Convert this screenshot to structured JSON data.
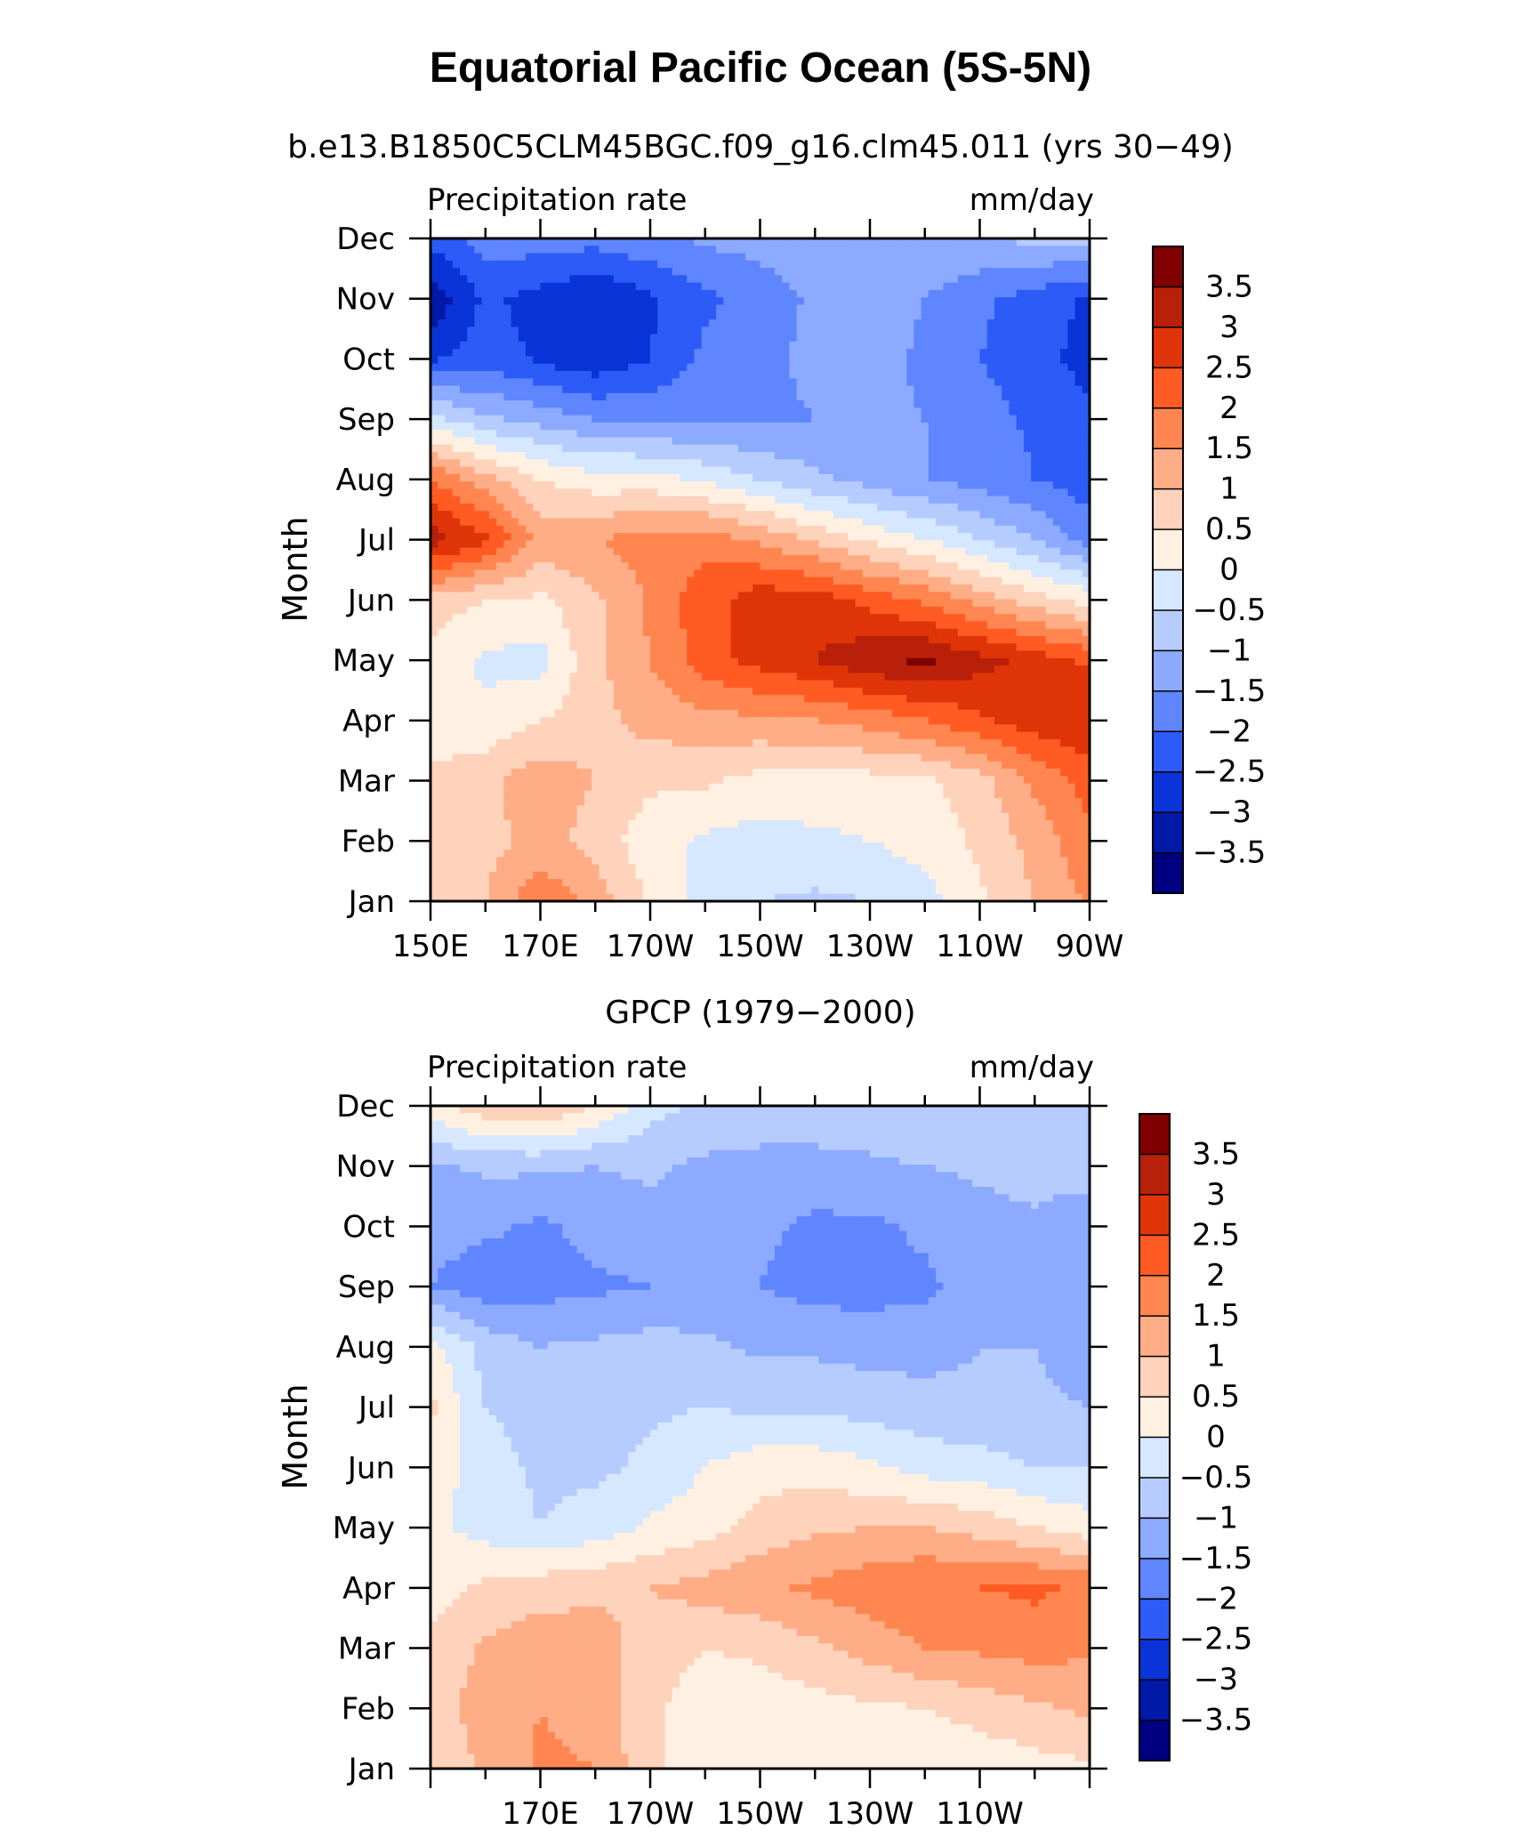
{
  "figure": {
    "title": "Equatorial Pacific Ocean (5S-5N)"
  },
  "colorbar": {
    "labels": [
      "3.5",
      "3",
      "2.5",
      "2",
      "1.5",
      "1",
      "0.5",
      "0",
      "−0.5",
      "−1",
      "−1.5",
      "−2",
      "−2.5",
      "−3",
      "−3.5"
    ],
    "colors": [
      "#800000",
      "#b8200a",
      "#e03508",
      "#ff5b22",
      "#ff8650",
      "#ffad86",
      "#ffd2bb",
      "#fff0e2",
      "#d6e8ff",
      "#b6ccff",
      "#8caaff",
      "#5f86ff",
      "#2c5bf7",
      "#0a34d8",
      "#0019a6",
      "#000080"
    ]
  },
  "chart_data": [
    {
      "type": "heatmap",
      "subtitle": "b.e13.B1850C5CLM45BGC.f09_g16.clm45.011 (yrs 30−49)",
      "left_label": "Precipitation rate",
      "right_label": "mm/day",
      "ylabel": "Month",
      "xticklabels": [
        "150E",
        "170E",
        "170W",
        "150W",
        "130W",
        "110W",
        "90W"
      ],
      "yticklabels": [
        "Jan",
        "Feb",
        "Mar",
        "Apr",
        "May",
        "Jun",
        "Jul",
        "Aug",
        "Sep",
        "Oct",
        "Nov",
        "Dec"
      ],
      "x_lon": [
        150,
        160,
        170,
        180,
        190,
        200,
        210,
        220,
        230,
        240,
        250,
        260,
        270
      ],
      "levels": [
        -3.5,
        -3,
        -2.5,
        -2,
        -1.5,
        -1,
        -0.5,
        0,
        0.5,
        1,
        1.5,
        2,
        2.5,
        3,
        3.5
      ],
      "values": [
        [
          0.6,
          1.0,
          1.9,
          1.3,
          0.4,
          -0.2,
          -0.5,
          -0.6,
          -0.5,
          -0.2,
          0.4,
          1.0,
          1.6
        ],
        [
          0.5,
          0.8,
          1.2,
          0.8,
          0.2,
          -0.1,
          -0.2,
          -0.1,
          0.0,
          0.2,
          0.6,
          1.2,
          1.9
        ],
        [
          0.6,
          0.9,
          1.3,
          1.0,
          0.6,
          0.6,
          0.3,
          0.3,
          0.3,
          0.4,
          0.8,
          1.6,
          2.2
        ],
        [
          0.2,
          0.1,
          0.5,
          0.8,
          1.2,
          1.3,
          1.4,
          1.5,
          1.7,
          2.0,
          2.4,
          2.8,
          3.0
        ],
        [
          0.3,
          -0.1,
          -0.2,
          0.9,
          1.5,
          2.3,
          2.7,
          3.0,
          3.4,
          3.6,
          3.2,
          2.8,
          2.4
        ],
        [
          0.8,
          0.5,
          0.4,
          0.9,
          1.6,
          2.3,
          2.8,
          2.8,
          2.3,
          1.9,
          1.3,
          0.7,
          0.3
        ],
        [
          3.3,
          2.6,
          1.3,
          1.5,
          1.7,
          1.8,
          1.4,
          0.9,
          0.4,
          0.0,
          -0.5,
          -1.0,
          -1.7
        ],
        [
          2.0,
          1.2,
          0.5,
          0.2,
          0.2,
          -0.1,
          -0.5,
          -0.9,
          -1.2,
          -1.5,
          -1.7,
          -2.0,
          -2.3
        ],
        [
          -0.3,
          -0.9,
          -1.2,
          -1.5,
          -1.6,
          -1.6,
          -1.6,
          -1.5,
          -1.4,
          -1.5,
          -1.8,
          -2.1,
          -2.4
        ],
        [
          -2.6,
          -2.2,
          -2.6,
          -2.9,
          -2.5,
          -1.9,
          -1.6,
          -1.4,
          -1.3,
          -1.6,
          -2.0,
          -2.3,
          -2.7
        ],
        [
          -3.4,
          -2.4,
          -2.7,
          -3.0,
          -2.6,
          -2.1,
          -1.8,
          -1.4,
          -1.2,
          -1.5,
          -1.9,
          -2.2,
          -2.6
        ],
        [
          -2.3,
          -1.8,
          -1.7,
          -1.8,
          -1.6,
          -1.4,
          -1.3,
          -1.2,
          -1.2,
          -1.1,
          -1.0,
          -0.9,
          -0.8
        ]
      ]
    },
    {
      "type": "heatmap",
      "subtitle": "GPCP (1979−2000)",
      "left_label": "Precipitation rate",
      "right_label": "mm/day",
      "ylabel": "Month",
      "xticklabels": [
        "",
        "170E",
        "170W",
        "150W",
        "130W",
        "110W",
        ""
      ],
      "yticklabels": [
        "Jan",
        "Feb",
        "Mar",
        "Apr",
        "May",
        "Jun",
        "Jul",
        "Aug",
        "Sep",
        "Oct",
        "Nov",
        "Dec"
      ],
      "x_lon": [
        150,
        160,
        170,
        180,
        190,
        200,
        210,
        220,
        230,
        240,
        250,
        260,
        270
      ],
      "levels": [
        -3.5,
        -3,
        -2.5,
        -2,
        -1.5,
        -1,
        -0.5,
        0,
        0.5,
        1,
        1.5,
        2,
        2.5,
        3,
        3.5
      ],
      "values": [
        [
          0.6,
          1.1,
          1.6,
          1.5,
          0.6,
          0.1,
          0.0,
          0.0,
          0.0,
          0.0,
          0.2,
          0.3,
          0.4
        ],
        [
          0.8,
          1.2,
          1.5,
          1.3,
          0.6,
          0.2,
          0.2,
          0.3,
          0.4,
          0.5,
          0.7,
          0.9,
          1.1
        ],
        [
          0.6,
          1.1,
          1.3,
          1.2,
          0.8,
          0.5,
          0.6,
          0.9,
          1.2,
          1.5,
          1.6,
          1.7,
          1.6
        ],
        [
          0.3,
          0.6,
          0.8,
          0.9,
          1.0,
          1.2,
          1.4,
          1.6,
          1.8,
          2.0,
          2.0,
          2.1,
          1.9
        ],
        [
          0.1,
          -0.2,
          -0.5,
          -0.3,
          0.1,
          0.3,
          0.7,
          0.9,
          1.0,
          1.0,
          0.8,
          0.5,
          0.2
        ],
        [
          0.3,
          -0.3,
          -0.6,
          -0.6,
          -0.4,
          0.0,
          0.3,
          0.3,
          0.1,
          -0.2,
          -0.3,
          -0.5,
          -0.5
        ],
        [
          0.6,
          -0.5,
          -0.7,
          -0.7,
          -0.6,
          -0.5,
          -0.6,
          -0.6,
          -0.7,
          -0.8,
          -0.9,
          -0.9,
          -1.0
        ],
        [
          0.2,
          -0.7,
          -1.0,
          -0.9,
          -0.8,
          -0.9,
          -1.1,
          -1.1,
          -1.2,
          -1.2,
          -1.0,
          -1.0,
          -1.3
        ],
        [
          -1.5,
          -1.8,
          -1.7,
          -1.6,
          -1.5,
          -1.3,
          -1.5,
          -1.7,
          -1.7,
          -1.6,
          -1.3,
          -1.1,
          -1.3
        ],
        [
          -1.3,
          -1.4,
          -1.6,
          -1.3,
          -1.2,
          -1.2,
          -1.4,
          -1.6,
          -1.6,
          -1.4,
          -1.2,
          -1.1,
          -1.3
        ],
        [
          -1.1,
          -0.9,
          -0.9,
          -1.0,
          -0.9,
          -1.1,
          -1.2,
          -1.2,
          -1.1,
          -1.0,
          -0.9,
          -0.8,
          -0.8
        ],
        [
          0.3,
          0.9,
          1.1,
          0.5,
          -0.3,
          -0.6,
          -0.6,
          -0.6,
          -0.6,
          -0.5,
          -0.5,
          -0.6,
          -0.8
        ]
      ]
    }
  ]
}
